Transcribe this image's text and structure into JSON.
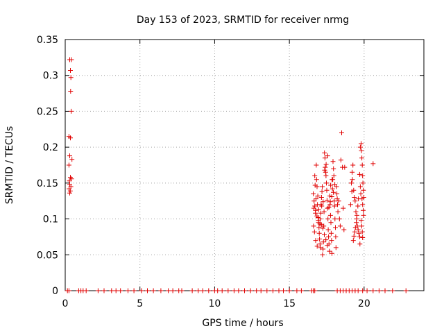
{
  "chart_data": {
    "type": "scatter",
    "title": "Day 153 of 2023, SRMTID for receiver nrmg",
    "xlabel": "GPS time / hours",
    "ylabel": "SRMTID / TECUs",
    "xlim": [
      0,
      24
    ],
    "ylim": [
      0,
      0.35
    ],
    "xticks": [
      0,
      5,
      10,
      15,
      20
    ],
    "xtick_labels": [
      "0",
      "5",
      "10",
      "15",
      "20"
    ],
    "yticks": [
      0,
      0.05,
      0.1,
      0.15,
      0.2,
      0.25,
      0.3,
      0.35
    ],
    "ytick_labels": [
      "0",
      "0.05",
      "0.1",
      "0.15",
      "0.2",
      "0.25",
      "0.3",
      "0.35"
    ],
    "grid": true,
    "marker": "+",
    "color": "#e00000",
    "series": [
      {
        "name": "SRMTID",
        "points": [
          [
            0.15,
            0.0
          ],
          [
            0.25,
            0.0
          ],
          [
            0.9,
            0.0
          ],
          [
            1.05,
            0.0
          ],
          [
            1.2,
            0.0
          ],
          [
            1.4,
            0.0
          ],
          [
            2.2,
            0.0
          ],
          [
            2.6,
            0.0
          ],
          [
            3.1,
            0.0
          ],
          [
            3.4,
            0.0
          ],
          [
            3.7,
            0.0
          ],
          [
            4.2,
            0.0
          ],
          [
            4.6,
            0.0
          ],
          [
            5.1,
            0.0
          ],
          [
            5.5,
            0.0
          ],
          [
            5.9,
            0.0
          ],
          [
            6.4,
            0.0
          ],
          [
            6.9,
            0.0
          ],
          [
            7.2,
            0.0
          ],
          [
            7.6,
            0.0
          ],
          [
            7.8,
            0.0
          ],
          [
            8.5,
            0.0
          ],
          [
            8.9,
            0.0
          ],
          [
            9.2,
            0.0
          ],
          [
            9.6,
            0.0
          ],
          [
            10.0,
            0.0
          ],
          [
            10.2,
            0.0
          ],
          [
            10.5,
            0.0
          ],
          [
            10.9,
            0.0
          ],
          [
            11.3,
            0.0
          ],
          [
            11.6,
            0.0
          ],
          [
            12.0,
            0.0
          ],
          [
            12.4,
            0.0
          ],
          [
            12.8,
            0.0
          ],
          [
            13.1,
            0.0
          ],
          [
            13.5,
            0.0
          ],
          [
            13.9,
            0.0
          ],
          [
            14.3,
            0.0
          ],
          [
            14.6,
            0.0
          ],
          [
            15.0,
            0.0
          ],
          [
            15.5,
            0.0
          ],
          [
            15.8,
            0.0
          ],
          [
            16.5,
            0.0
          ],
          [
            16.6,
            0.0
          ],
          [
            16.7,
            0.0
          ],
          [
            18.2,
            0.0
          ],
          [
            18.4,
            0.0
          ],
          [
            18.6,
            0.0
          ],
          [
            18.8,
            0.0
          ],
          [
            19.0,
            0.0
          ],
          [
            19.2,
            0.0
          ],
          [
            19.4,
            0.0
          ],
          [
            19.6,
            0.0
          ],
          [
            19.9,
            0.0
          ],
          [
            20.2,
            0.0
          ],
          [
            20.6,
            0.0
          ],
          [
            21.0,
            0.0
          ],
          [
            21.4,
            0.0
          ],
          [
            21.9,
            0.0
          ],
          [
            22.8,
            0.0
          ],
          [
            0.3,
            0.322
          ],
          [
            0.42,
            0.322
          ],
          [
            0.35,
            0.307
          ],
          [
            0.38,
            0.297
          ],
          [
            0.36,
            0.278
          ],
          [
            0.4,
            0.25
          ],
          [
            0.25,
            0.215
          ],
          [
            0.35,
            0.213
          ],
          [
            0.3,
            0.188
          ],
          [
            0.45,
            0.183
          ],
          [
            0.25,
            0.175
          ],
          [
            0.35,
            0.158
          ],
          [
            0.42,
            0.156
          ],
          [
            0.28,
            0.153
          ],
          [
            0.3,
            0.148
          ],
          [
            0.38,
            0.145
          ],
          [
            0.26,
            0.142
          ],
          [
            0.34,
            0.139
          ],
          [
            0.3,
            0.136
          ],
          [
            16.6,
            0.135
          ],
          [
            16.65,
            0.125
          ],
          [
            16.7,
            0.118
          ],
          [
            16.75,
            0.112
          ],
          [
            16.8,
            0.175
          ],
          [
            16.82,
            0.155
          ],
          [
            16.85,
            0.145
          ],
          [
            16.9,
            0.132
          ],
          [
            16.92,
            0.102
          ],
          [
            16.95,
            0.095
          ],
          [
            16.98,
            0.088
          ],
          [
            17.0,
            0.08
          ],
          [
            17.02,
            0.072
          ],
          [
            17.05,
            0.065
          ],
          [
            17.08,
            0.06
          ],
          [
            17.1,
            0.108
          ],
          [
            17.12,
            0.12
          ],
          [
            17.15,
            0.13
          ],
          [
            17.18,
            0.138
          ],
          [
            17.2,
            0.145
          ],
          [
            17.22,
            0.05
          ],
          [
            17.25,
            0.058
          ],
          [
            17.28,
            0.068
          ],
          [
            17.3,
            0.09
          ],
          [
            17.32,
            0.11
          ],
          [
            17.35,
            0.192
          ],
          [
            17.38,
            0.185
          ],
          [
            17.4,
            0.172
          ],
          [
            17.42,
            0.165
          ],
          [
            17.45,
            0.16
          ],
          [
            17.48,
            0.15
          ],
          [
            17.5,
            0.14
          ],
          [
            17.52,
            0.126
          ],
          [
            17.55,
            0.115
          ],
          [
            17.58,
            0.1
          ],
          [
            17.6,
            0.085
          ],
          [
            17.62,
            0.075
          ],
          [
            17.65,
            0.065
          ],
          [
            17.68,
            0.055
          ],
          [
            17.7,
            0.132
          ],
          [
            17.72,
            0.12
          ],
          [
            17.75,
            0.105
          ],
          [
            17.78,
            0.095
          ],
          [
            17.8,
            0.08
          ],
          [
            17.82,
            0.07
          ],
          [
            17.85,
            0.052
          ],
          [
            17.88,
            0.142
          ],
          [
            17.9,
            0.155
          ],
          [
            17.92,
            0.18
          ],
          [
            17.95,
            0.17
          ],
          [
            17.98,
            0.16
          ],
          [
            18.0,
            0.125
          ],
          [
            18.02,
            0.118
          ],
          [
            18.05,
            0.1
          ],
          [
            18.08,
            0.088
          ],
          [
            18.1,
            0.075
          ],
          [
            18.12,
            0.06
          ],
          [
            18.15,
            0.145
          ],
          [
            18.18,
            0.135
          ],
          [
            18.2,
            0.128
          ],
          [
            18.22,
            0.12
          ],
          [
            18.25,
            0.11
          ],
          [
            18.5,
            0.22
          ],
          [
            18.45,
            0.182
          ],
          [
            18.55,
            0.172
          ],
          [
            18.7,
            0.172
          ],
          [
            18.6,
            0.115
          ],
          [
            18.65,
            0.085
          ],
          [
            18.4,
            0.09
          ],
          [
            18.35,
            0.1
          ],
          [
            18.3,
            0.125
          ],
          [
            16.7,
            0.16
          ],
          [
            16.72,
            0.147
          ],
          [
            16.78,
            0.128
          ],
          [
            16.88,
            0.12
          ],
          [
            16.96,
            0.113
          ],
          [
            17.06,
            0.1
          ],
          [
            17.14,
            0.092
          ],
          [
            17.24,
            0.087
          ],
          [
            17.34,
            0.078
          ],
          [
            17.44,
            0.071
          ],
          [
            17.54,
            0.063
          ],
          [
            17.64,
            0.116
          ],
          [
            17.74,
            0.124
          ],
          [
            17.84,
            0.131
          ],
          [
            17.94,
            0.137
          ],
          [
            18.04,
            0.148
          ],
          [
            17.36,
            0.168
          ],
          [
            17.46,
            0.176
          ],
          [
            17.56,
            0.188
          ],
          [
            16.62,
            0.09
          ],
          [
            16.68,
            0.082
          ],
          [
            16.76,
            0.07
          ],
          [
            16.86,
            0.062
          ],
          [
            17.16,
            0.118
          ],
          [
            17.26,
            0.124
          ],
          [
            17.76,
            0.147
          ],
          [
            17.86,
            0.155
          ],
          [
            16.64,
            0.115
          ],
          [
            16.74,
            0.108
          ],
          [
            16.84,
            0.104
          ],
          [
            16.94,
            0.098
          ],
          [
            17.04,
            0.093
          ],
          [
            19.1,
            0.12
          ],
          [
            19.15,
            0.15
          ],
          [
            19.2,
            0.165
          ],
          [
            19.25,
            0.175
          ],
          [
            19.3,
            0.14
          ],
          [
            19.35,
            0.13
          ],
          [
            19.4,
            0.125
          ],
          [
            19.45,
            0.11
          ],
          [
            19.5,
            0.1
          ],
          [
            19.55,
            0.09
          ],
          [
            19.6,
            0.085
          ],
          [
            19.65,
            0.08
          ],
          [
            19.7,
            0.075
          ],
          [
            19.72,
            0.065
          ],
          [
            19.75,
            0.2
          ],
          [
            19.8,
            0.205
          ],
          [
            19.82,
            0.195
          ],
          [
            19.85,
            0.185
          ],
          [
            19.88,
            0.175
          ],
          [
            19.9,
            0.16
          ],
          [
            19.92,
            0.15
          ],
          [
            19.95,
            0.14
          ],
          [
            19.98,
            0.13
          ],
          [
            19.7,
            0.162
          ],
          [
            19.75,
            0.145
          ],
          [
            19.78,
            0.135
          ],
          [
            19.62,
            0.128
          ],
          [
            19.58,
            0.118
          ],
          [
            19.52,
            0.105
          ],
          [
            19.48,
            0.095
          ],
          [
            19.42,
            0.088
          ],
          [
            19.38,
            0.082
          ],
          [
            19.32,
            0.076
          ],
          [
            19.28,
            0.07
          ],
          [
            19.22,
            0.155
          ],
          [
            19.18,
            0.138
          ],
          [
            19.86,
            0.128
          ],
          [
            19.9,
            0.12
          ],
          [
            19.94,
            0.112
          ],
          [
            19.96,
            0.105
          ],
          [
            19.8,
            0.098
          ],
          [
            19.84,
            0.09
          ],
          [
            19.88,
            0.082
          ],
          [
            19.9,
            0.074
          ],
          [
            20.6,
            0.177
          ]
        ]
      }
    ]
  }
}
